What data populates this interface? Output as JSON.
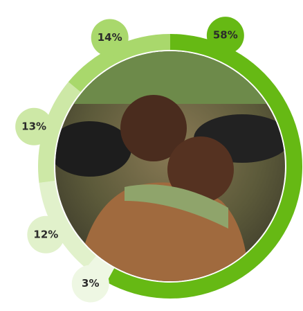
{
  "chart_data": {
    "type": "donut",
    "values": [
      58,
      3,
      12,
      13,
      14
    ],
    "value_labels": [
      "58%",
      "3%",
      "12%",
      "13%",
      "14%"
    ],
    "colors": [
      "#66b914",
      "#eef7e3",
      "#e1f1cb",
      "#cde8a6",
      "#a9d86c"
    ]
  }
}
